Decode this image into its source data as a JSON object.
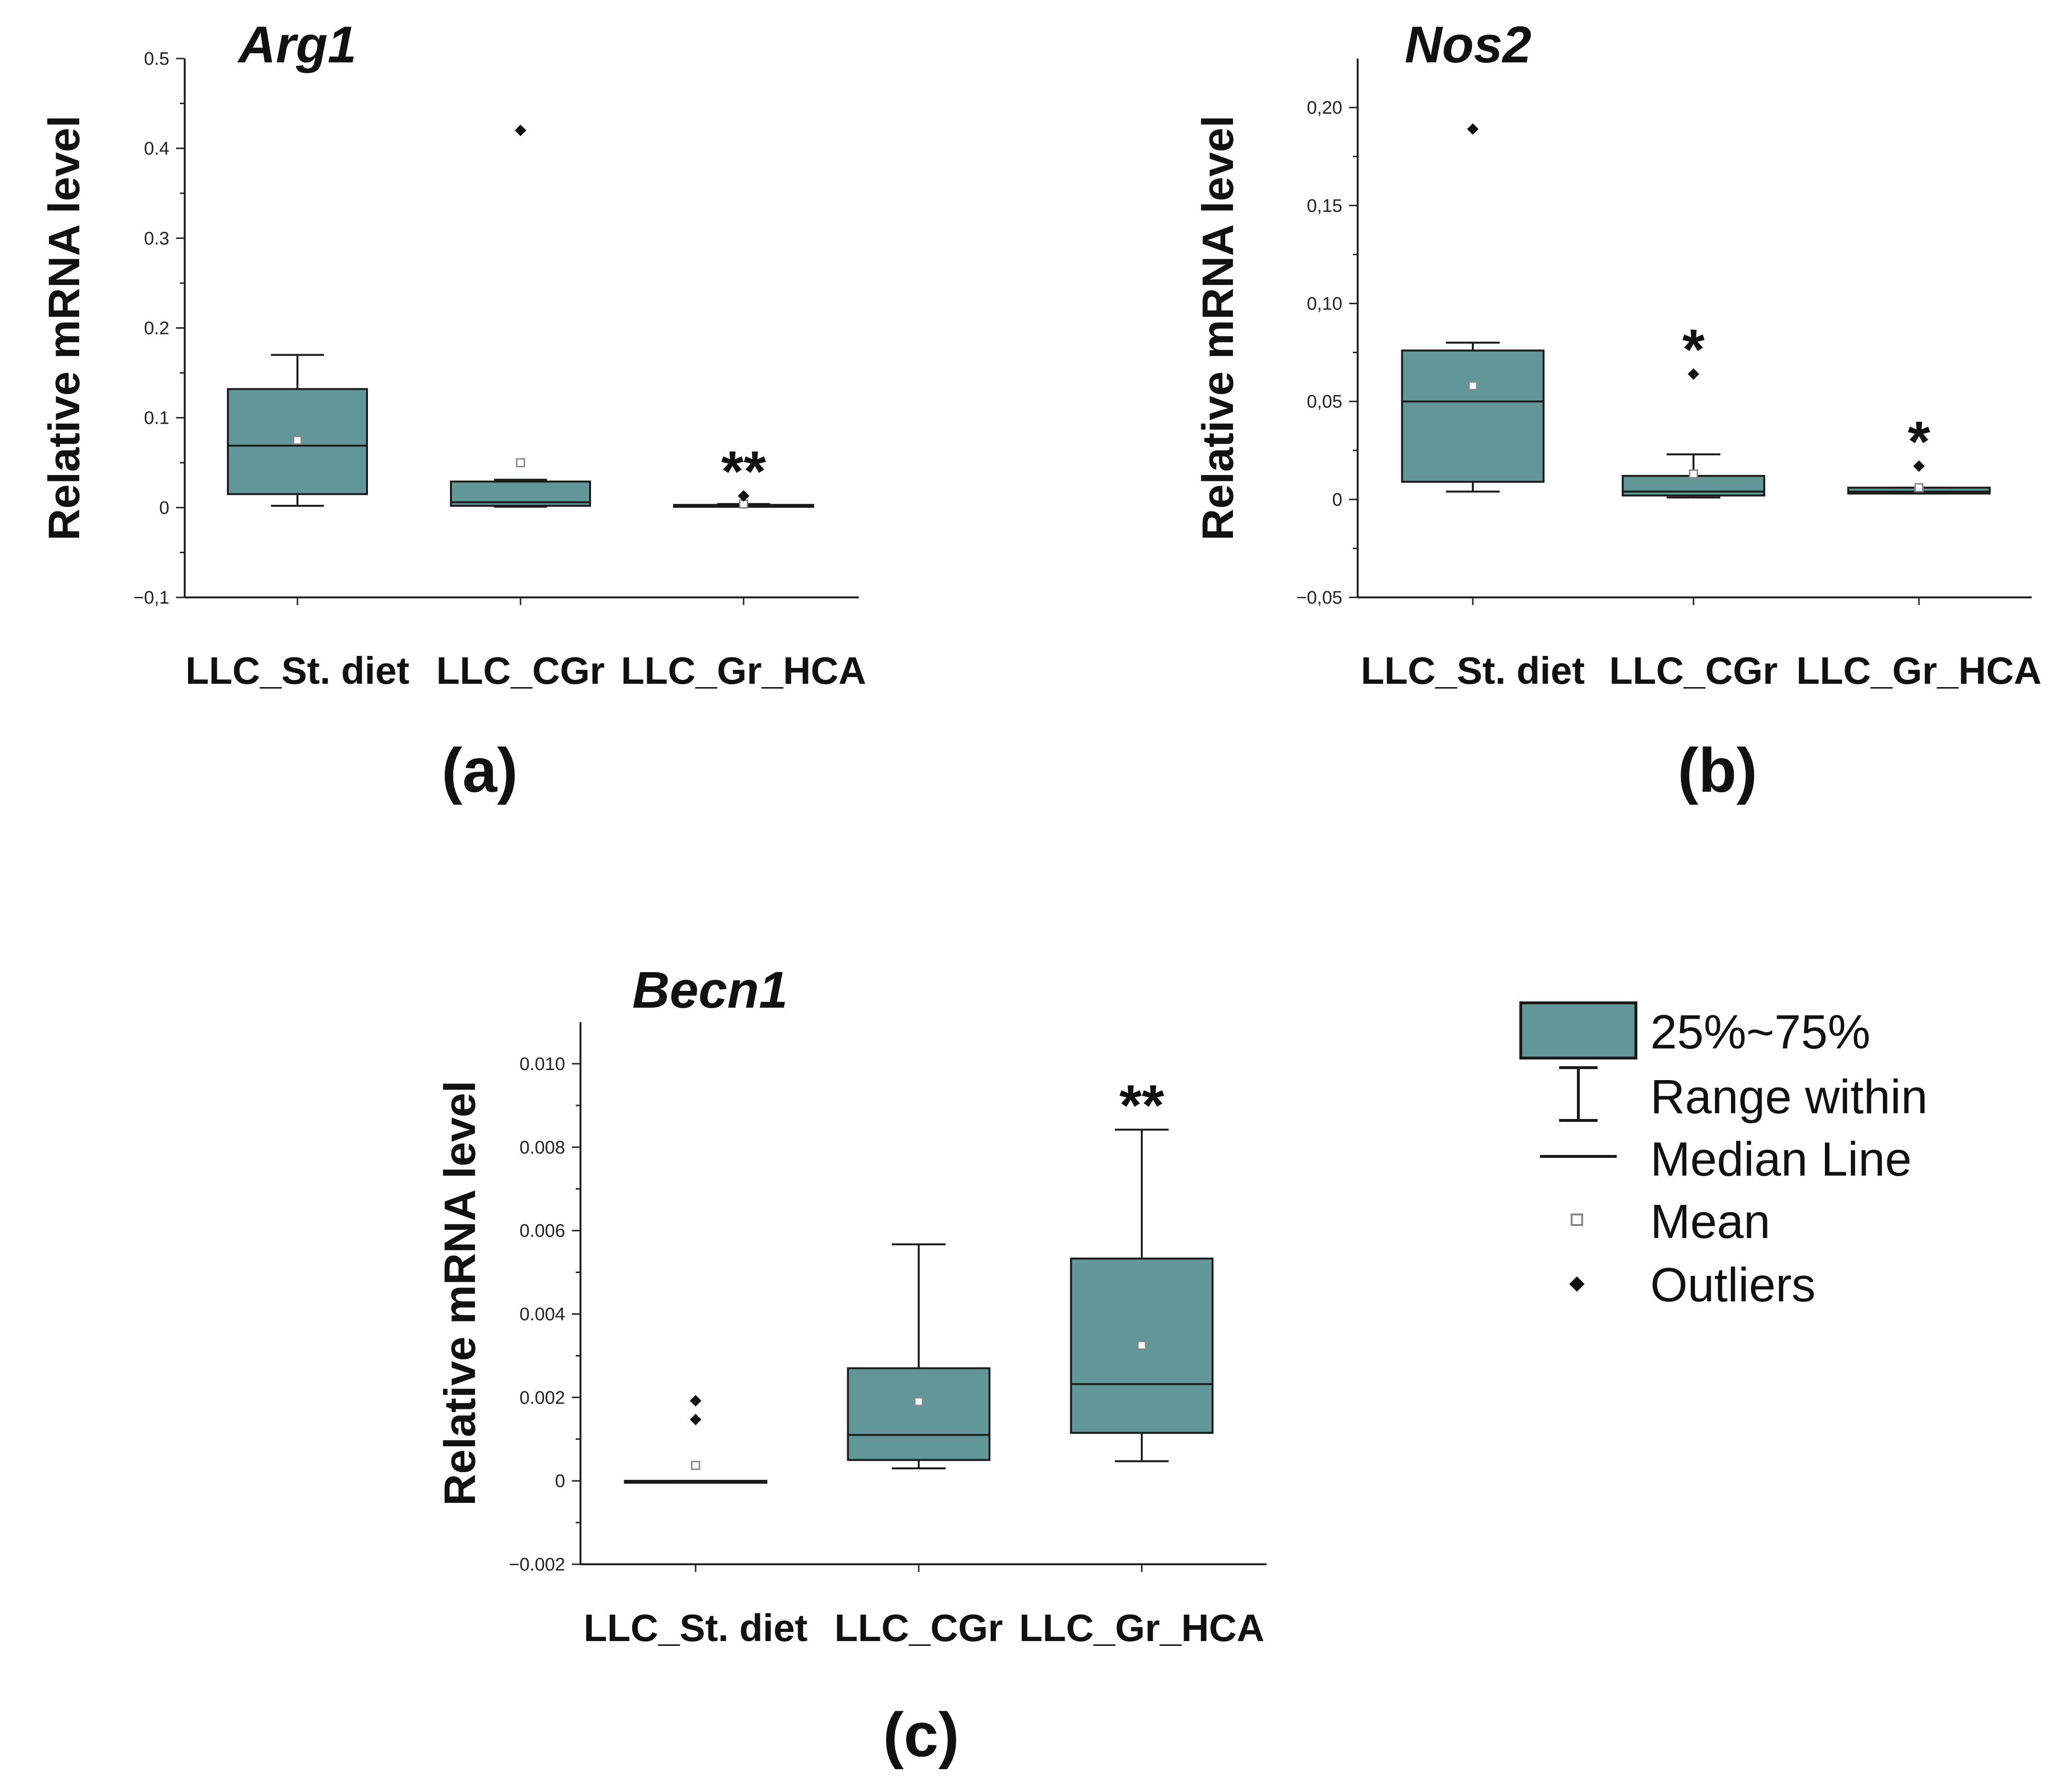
{
  "colors": {
    "box_fill": "#62979A",
    "box_stroke": "#1a1a1a",
    "axis": "#222222",
    "outlier": "#111111",
    "mean": "#ffffff"
  },
  "chart_data": [
    {
      "type": "box",
      "title": "Arg1",
      "panel_label": "(a)",
      "ylabel": "Relative mRNA level",
      "xlabel": "",
      "ylim": [
        -0.1,
        0.5
      ],
      "yticks": [
        {
          "value": -0.1,
          "label": "−0,1"
        },
        {
          "value": 0,
          "label": "0"
        },
        {
          "value": 0.1,
          "label": "0.1"
        },
        {
          "value": 0.2,
          "label": "0.2"
        },
        {
          "value": 0.3,
          "label": "0.3"
        },
        {
          "value": 0.4,
          "label": "0.4"
        },
        {
          "value": 0.5,
          "label": "0.5"
        }
      ],
      "categories": [
        "LLC_St. diet",
        "LLC_CGr",
        "LLC_Gr_HCA"
      ],
      "boxes": [
        {
          "category": "LLC_St. diet",
          "q1": 0.015,
          "median": 0.069,
          "q3": 0.132,
          "whisker_low": 0.002,
          "whisker_high": 0.17,
          "mean": 0.075,
          "outliers": [],
          "significance": ""
        },
        {
          "category": "LLC_CGr",
          "q1": 0.002,
          "median": 0.006,
          "q3": 0.029,
          "whisker_low": 0.001,
          "whisker_high": 0.031,
          "mean": 0.05,
          "outliers": [
            0.42
          ],
          "significance": ""
        },
        {
          "category": "LLC_Gr_HCA",
          "q1": 0.001,
          "median": 0.002,
          "q3": 0.003,
          "whisker_low": 0.001,
          "whisker_high": 0.004,
          "mean": 0.004,
          "outliers": [
            0.013
          ],
          "significance": "**"
        }
      ]
    },
    {
      "type": "box",
      "title": "Nos2",
      "panel_label": "(b)",
      "ylabel": "Relative mRNA level",
      "xlabel": "",
      "ylim": [
        -0.05,
        0.225
      ],
      "yticks": [
        {
          "value": -0.05,
          "label": "−0,05"
        },
        {
          "value": 0,
          "label": "0"
        },
        {
          "value": 0.05,
          "label": "0,05"
        },
        {
          "value": 0.1,
          "label": "0,10"
        },
        {
          "value": 0.15,
          "label": "0,15"
        },
        {
          "value": 0.2,
          "label": "0,20"
        }
      ],
      "categories": [
        "LLC_St. diet",
        "LLC_CGr",
        "LLC_Gr_HCA"
      ],
      "boxes": [
        {
          "category": "LLC_St. diet",
          "q1": 0.009,
          "median": 0.05,
          "q3": 0.076,
          "whisker_low": 0.004,
          "whisker_high": 0.08,
          "mean": 0.058,
          "outliers": [
            0.189
          ],
          "significance": ""
        },
        {
          "category": "LLC_CGr",
          "q1": 0.002,
          "median": 0.004,
          "q3": 0.012,
          "whisker_low": 0.001,
          "whisker_high": 0.023,
          "mean": 0.013,
          "outliers": [
            0.064
          ],
          "significance": "*"
        },
        {
          "category": "LLC_Gr_HCA",
          "q1": 0.003,
          "median": 0.004,
          "q3": 0.006,
          "whisker_low": 0.003,
          "whisker_high": 0.006,
          "mean": 0.006,
          "outliers": [
            0.017
          ],
          "significance": "*"
        }
      ]
    },
    {
      "type": "box",
      "title": "Becn1",
      "panel_label": "(c)",
      "ylabel": "Relative mRNA level",
      "xlabel": "",
      "ylim": [
        -0.002,
        0.011
      ],
      "yticks": [
        {
          "value": -0.002,
          "label": "−0.002"
        },
        {
          "value": 0,
          "label": "0"
        },
        {
          "value": 0.002,
          "label": "0.002"
        },
        {
          "value": 0.004,
          "label": "0.004"
        },
        {
          "value": 0.006,
          "label": "0.006"
        },
        {
          "value": 0.008,
          "label": "0.008"
        },
        {
          "value": 0.01,
          "label": "0.010"
        }
      ],
      "categories": [
        "LLC_St. diet",
        "LLC_CGr",
        "LLC_Gr_HCA"
      ],
      "boxes": [
        {
          "category": "LLC_St. diet",
          "q1": 0,
          "median": 0,
          "q3": 0,
          "whisker_low": 0,
          "whisker_high": 0,
          "mean": 0.00037,
          "outliers": [
            0.00192,
            0.00147
          ],
          "significance": ""
        },
        {
          "category": "LLC_CGr",
          "q1": 0.0005,
          "median": 0.0011,
          "q3": 0.0027,
          "whisker_low": 0.0003,
          "whisker_high": 0.00567,
          "mean": 0.0019,
          "outliers": [],
          "significance": ""
        },
        {
          "category": "LLC_Gr_HCA",
          "q1": 0.00115,
          "median": 0.00232,
          "q3": 0.00533,
          "whisker_low": 0.00047,
          "whisker_high": 0.00842,
          "mean": 0.00325,
          "outliers": [],
          "significance": "**"
        }
      ]
    }
  ],
  "legend": {
    "items": [
      {
        "key": "box",
        "label": "25%~75%"
      },
      {
        "key": "range",
        "label": "Range within"
      },
      {
        "key": "median",
        "label": "Median Line"
      },
      {
        "key": "mean",
        "label": "Mean"
      },
      {
        "key": "outliers",
        "label": "Outliers"
      }
    ]
  }
}
